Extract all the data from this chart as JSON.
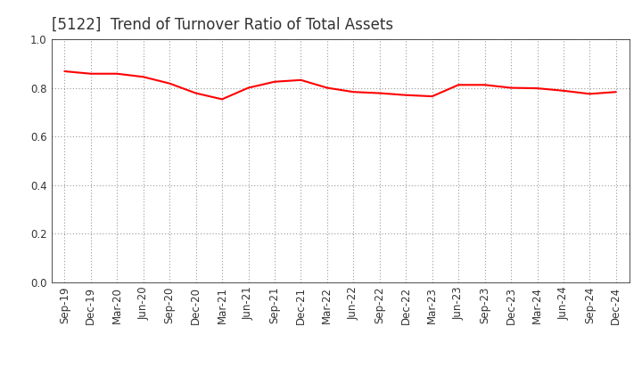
{
  "title": "[5122]  Trend of Turnover Ratio of Total Assets",
  "x_labels": [
    "Sep-19",
    "Dec-19",
    "Mar-20",
    "Jun-20",
    "Sep-20",
    "Dec-20",
    "Mar-21",
    "Jun-21",
    "Sep-21",
    "Dec-21",
    "Mar-22",
    "Jun-22",
    "Sep-22",
    "Dec-22",
    "Mar-23",
    "Jun-23",
    "Sep-23",
    "Dec-23",
    "Mar-24",
    "Jun-24",
    "Sep-24",
    "Dec-24"
  ],
  "y_values": [
    0.868,
    0.858,
    0.858,
    0.845,
    0.818,
    0.778,
    0.753,
    0.8,
    0.825,
    0.832,
    0.8,
    0.783,
    0.778,
    0.77,
    0.765,
    0.812,
    0.812,
    0.8,
    0.798,
    0.788,
    0.775,
    0.783
  ],
  "line_color": "#FF0000",
  "line_width": 1.5,
  "ylim": [
    0.0,
    1.0
  ],
  "yticks": [
    0.0,
    0.2,
    0.4,
    0.6,
    0.8,
    1.0
  ],
  "background_color": "#FFFFFF",
  "grid_color": "#999999",
  "title_fontsize": 12,
  "tick_fontsize": 8.5,
  "title_color": "#333333"
}
